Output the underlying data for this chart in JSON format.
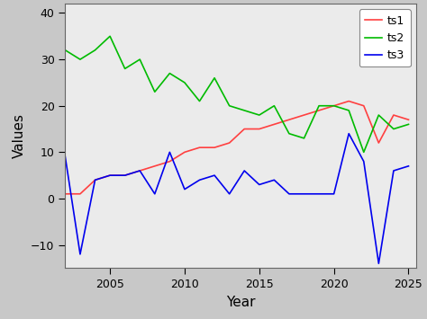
{
  "years": [
    2002,
    2003,
    2004,
    2005,
    2006,
    2007,
    2008,
    2009,
    2010,
    2011,
    2012,
    2013,
    2014,
    2015,
    2016,
    2017,
    2018,
    2019,
    2020,
    2021,
    2022,
    2023,
    2024,
    2025
  ],
  "ts1": [
    1,
    1,
    4,
    5,
    5,
    6,
    7,
    8,
    10,
    11,
    11,
    12,
    15,
    15,
    16,
    17,
    18,
    19,
    20,
    21,
    20,
    12,
    18,
    17
  ],
  "ts2": [
    32,
    30,
    32,
    35,
    28,
    30,
    23,
    27,
    25,
    21,
    26,
    20,
    19,
    18,
    20,
    14,
    13,
    20,
    20,
    19,
    10,
    18,
    15,
    16
  ],
  "ts3": [
    9,
    -12,
    4,
    5,
    5,
    6,
    1,
    10,
    2,
    4,
    5,
    1,
    6,
    3,
    4,
    1,
    1,
    1,
    1,
    14,
    8,
    -14,
    6,
    7
  ],
  "ts1_color": "#FF4040",
  "ts2_color": "#00BB00",
  "ts3_color": "#0000EE",
  "xlabel": "Year",
  "ylabel": "Values",
  "xlim": [
    2002,
    2025.5
  ],
  "ylim": [
    -15,
    42
  ],
  "yticks": [
    -10,
    0,
    10,
    20,
    30,
    40
  ],
  "xticks": [
    2005,
    2010,
    2015,
    2020,
    2025
  ],
  "outer_bg": "#C8C8C8",
  "plot_bg": "#EBEBEB",
  "legend_labels": [
    "ts1",
    "ts2",
    "ts3"
  ],
  "line_width": 1.2,
  "legend_border_color": "#888888",
  "axis_border_color": "#666666"
}
